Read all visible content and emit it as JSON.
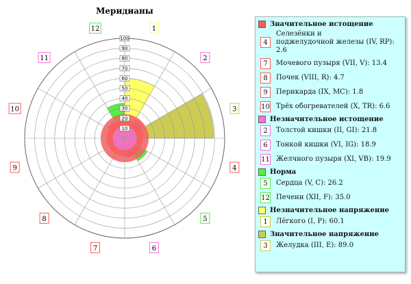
{
  "chart_data": {
    "type": "polar-bar",
    "title": "Меридианы",
    "rlim": [
      0,
      100
    ],
    "radial_ticks": [
      "0",
      "10",
      "20",
      "30",
      "40",
      "50",
      "60",
      "70",
      "80",
      "90",
      "100"
    ],
    "sectors": [
      {
        "meridian": "1",
        "value": 60.1,
        "group": "minor_tension"
      },
      {
        "meridian": "2",
        "value": 21.8,
        "group": "minor_deficiency"
      },
      {
        "meridian": "3",
        "value": 89.0,
        "group": "major_tension"
      },
      {
        "meridian": "4",
        "value": 2.6,
        "group": "major_deficiency"
      },
      {
        "meridian": "5",
        "value": 26.2,
        "group": "norm"
      },
      {
        "meridian": "6",
        "value": 18.9,
        "group": "minor_deficiency"
      },
      {
        "meridian": "7",
        "value": 13.4,
        "group": "major_deficiency"
      },
      {
        "meridian": "8",
        "value": 4.7,
        "group": "major_deficiency"
      },
      {
        "meridian": "9",
        "value": 1.8,
        "group": "major_deficiency"
      },
      {
        "meridian": "10",
        "value": 6.6,
        "group": "major_deficiency"
      },
      {
        "meridian": "11",
        "value": 19.9,
        "group": "minor_deficiency"
      },
      {
        "meridian": "12",
        "value": 35.0,
        "group": "norm"
      }
    ],
    "inner_rings": [
      {
        "color": "#ff5a5a",
        "fraction": 0.24
      },
      {
        "color": "#ff5a5a",
        "fraction": 0.18
      },
      {
        "color": "#ff6fd8",
        "fraction": 0.12
      }
    ],
    "legend_placement": "right"
  },
  "legend": {
    "groups": [
      {
        "id": "major_deficiency",
        "name": "Значительное истощение",
        "color": "#ff5a5a",
        "items": [
          {
            "num": "4",
            "text": [
              "Селезёнки и",
              "поджелудочной железы (IV, RP): 2.6"
            ]
          },
          {
            "num": "7",
            "text": [
              "Мочевого пузыря (VII, V): 13.4"
            ]
          },
          {
            "num": "8",
            "text": [
              "Почек (VIII, R): 4.7"
            ]
          },
          {
            "num": "9",
            "text": [
              "Перикарда (IX, MC): 1.8"
            ]
          },
          {
            "num": "10",
            "text": [
              "Трёх обогревателей (X, TR): 6.6"
            ]
          }
        ]
      },
      {
        "id": "minor_deficiency",
        "name": "Незначительное истощение",
        "color": "#ff6fd8",
        "items": [
          {
            "num": "2",
            "text": [
              "Толстой кишки (II, GI): 21.8"
            ]
          },
          {
            "num": "6",
            "text": [
              "Тонкой кишки (VI, IG): 18.9"
            ]
          },
          {
            "num": "11",
            "text": [
              "Желчного пузыря (XI, VB): 19.9"
            ]
          }
        ]
      },
      {
        "id": "norm",
        "name": "Норма",
        "color": "#55ee44",
        "items": [
          {
            "num": "5",
            "text": [
              "Сердца (V, C): 26.2"
            ]
          },
          {
            "num": "12",
            "text": [
              "Печени (XII, F): 35.0"
            ]
          }
        ]
      },
      {
        "id": "minor_tension",
        "name": "Незначительное напряжение",
        "color": "#ffff66",
        "items": [
          {
            "num": "1",
            "text": [
              "Лёгкого (I, P): 60.1"
            ]
          }
        ]
      },
      {
        "id": "major_tension",
        "name": "Значительное напряжение",
        "color": "#cccc55",
        "items": [
          {
            "num": "3",
            "text": [
              "Желудка (III, E): 89.0"
            ]
          }
        ]
      }
    ]
  }
}
